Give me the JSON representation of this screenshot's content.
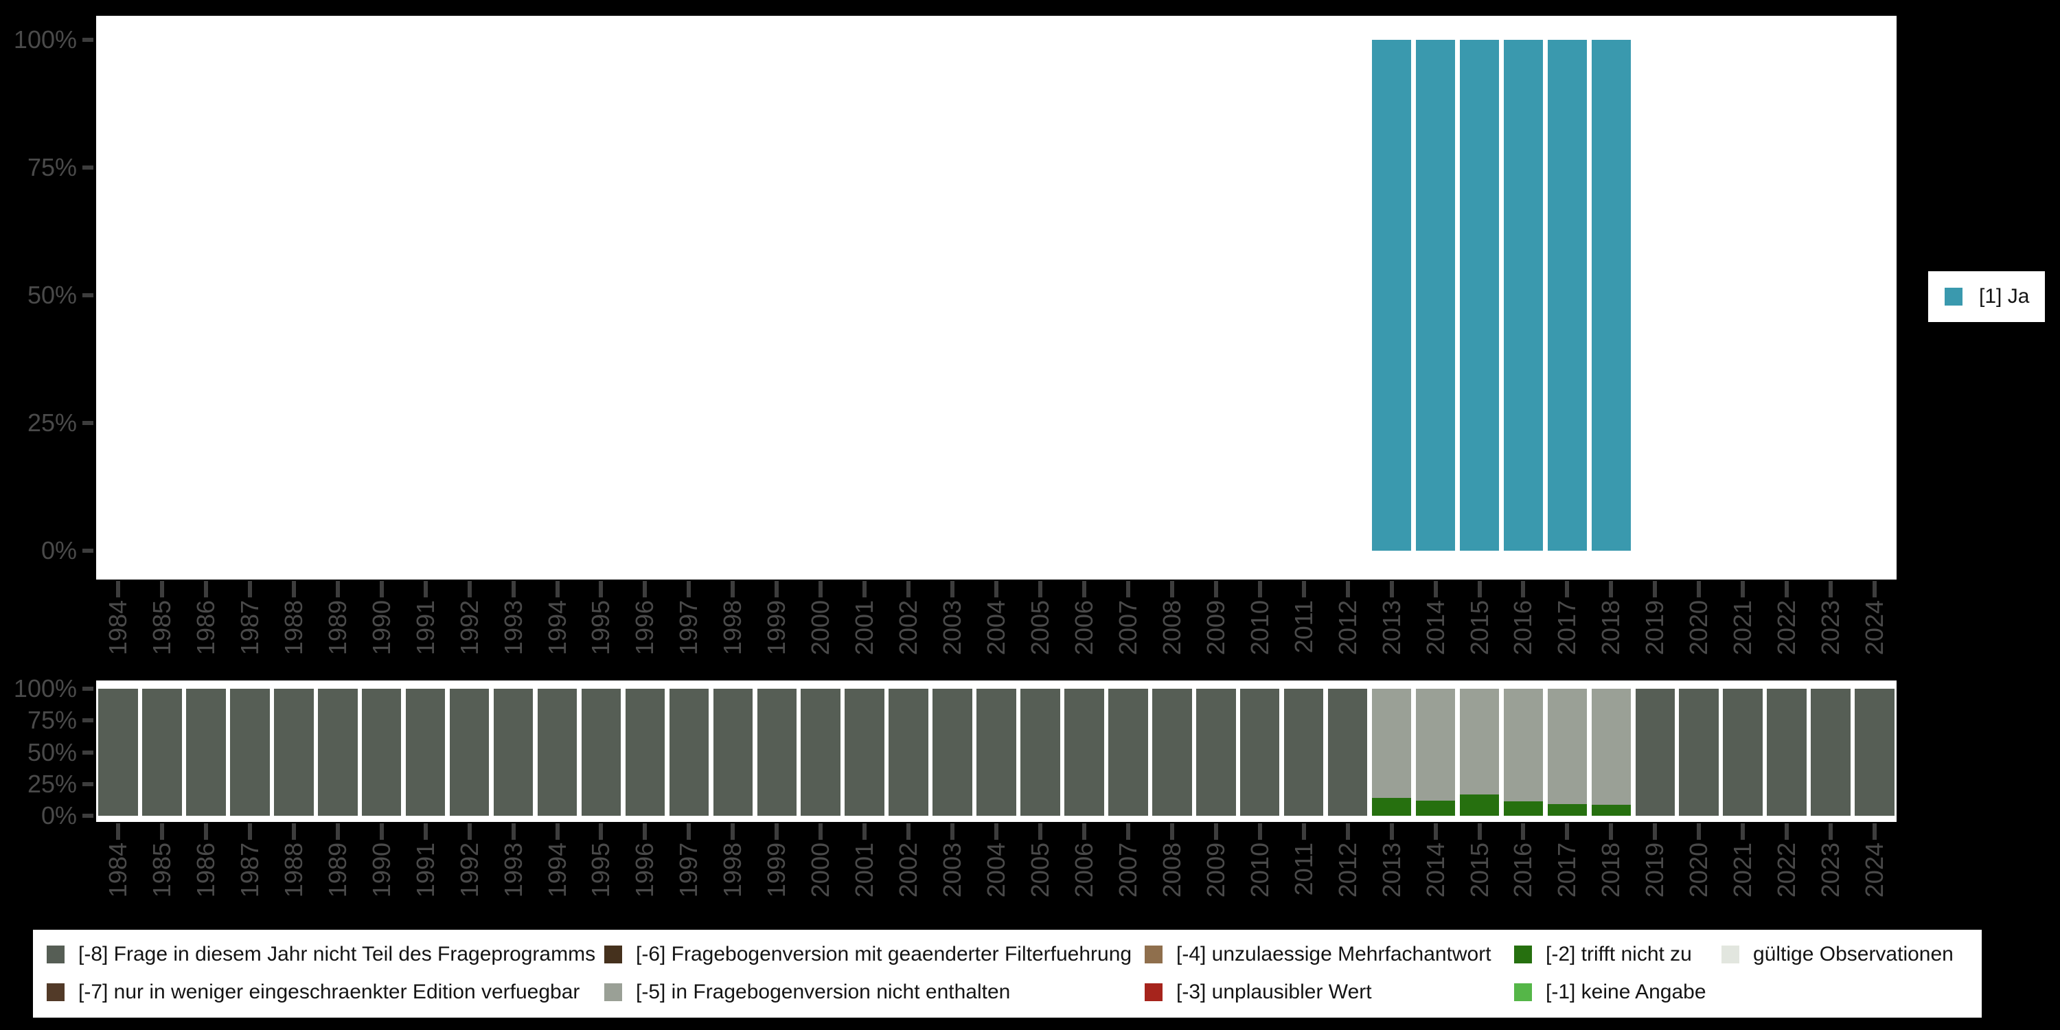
{
  "axis": {
    "percent_ticks": [
      "100%",
      "75%",
      "50%",
      "25%",
      "0%"
    ],
    "years": [
      "1984",
      "1985",
      "1986",
      "1987",
      "1988",
      "1989",
      "1990",
      "1991",
      "1992",
      "1993",
      "1994",
      "1995",
      "1996",
      "1997",
      "1998",
      "1999",
      "2000",
      "2001",
      "2002",
      "2003",
      "2004",
      "2005",
      "2006",
      "2007",
      "2008",
      "2009",
      "2010",
      "2011",
      "2012",
      "2013",
      "2014",
      "2015",
      "2016",
      "2017",
      "2018",
      "2019",
      "2020",
      "2021",
      "2022",
      "2023",
      "2024"
    ]
  },
  "legend_ja": {
    "label": "[1] Ja",
    "color": "#3a99ae"
  },
  "missing_legend": {
    "items": [
      {
        "label": "[-8] Frage in diesem Jahr nicht Teil des Frageprogramms",
        "color": "#565e55"
      },
      {
        "label": "[-7] nur in weniger eingeschraenkter Edition verfuegbar",
        "color": "#523a28"
      },
      {
        "label": "[-6] Fragebogenversion mit geaenderter Filterfuehrung",
        "color": "#45311d"
      },
      {
        "label": "[-5] in Fragebogenversion nicht enthalten",
        "color": "#9aa096"
      },
      {
        "label": "[-4] unzulaessige Mehrfachantwort",
        "color": "#8f6f4d"
      },
      {
        "label": "[-3] unplausibler Wert",
        "color": "#a6241c"
      },
      {
        "label": "[-2] trifft nicht zu",
        "color": "#26700f"
      },
      {
        "label": "[-1] keine Angabe",
        "color": "#55b648"
      },
      {
        "label": "gültige Observationen",
        "color": "#e2e6df"
      }
    ]
  },
  "chart_data": [
    {
      "type": "bar",
      "title": "",
      "x": [
        "1984",
        "1985",
        "1986",
        "1987",
        "1988",
        "1989",
        "1990",
        "1991",
        "1992",
        "1993",
        "1994",
        "1995",
        "1996",
        "1997",
        "1998",
        "1999",
        "2000",
        "2001",
        "2002",
        "2003",
        "2004",
        "2005",
        "2006",
        "2007",
        "2008",
        "2009",
        "2010",
        "2011",
        "2012",
        "2013",
        "2014",
        "2015",
        "2016",
        "2017",
        "2018",
        "2019",
        "2020",
        "2021",
        "2022",
        "2023",
        "2024"
      ],
      "ylabel": "",
      "xlabel": "",
      "ylim": [
        0,
        100
      ],
      "y_tick_labels": [
        "0%",
        "25%",
        "50%",
        "75%",
        "100%"
      ],
      "grid": false,
      "legend_position": "right",
      "series": [
        {
          "name": "[1] Ja",
          "color": "#3a99ae",
          "values": [
            null,
            null,
            null,
            null,
            null,
            null,
            null,
            null,
            null,
            null,
            null,
            null,
            null,
            null,
            null,
            null,
            null,
            null,
            null,
            null,
            null,
            null,
            null,
            null,
            null,
            null,
            null,
            null,
            null,
            100,
            100,
            100,
            100,
            100,
            100,
            null,
            null,
            null,
            null,
            null,
            null
          ]
        }
      ]
    },
    {
      "type": "stacked_bar_percent",
      "title": "",
      "x": [
        "1984",
        "1985",
        "1986",
        "1987",
        "1988",
        "1989",
        "1990",
        "1991",
        "1992",
        "1993",
        "1994",
        "1995",
        "1996",
        "1997",
        "1998",
        "1999",
        "2000",
        "2001",
        "2002",
        "2003",
        "2004",
        "2005",
        "2006",
        "2007",
        "2008",
        "2009",
        "2010",
        "2011",
        "2012",
        "2013",
        "2014",
        "2015",
        "2016",
        "2017",
        "2018",
        "2019",
        "2020",
        "2021",
        "2022",
        "2023",
        "2024"
      ],
      "ylabel": "",
      "xlabel": "",
      "ylim": [
        0,
        100
      ],
      "y_tick_labels": [
        "0%",
        "25%",
        "50%",
        "75%",
        "100%"
      ],
      "grid": false,
      "legend_position": "bottom",
      "series": [
        {
          "name": "[-8] Frage in diesem Jahr nicht Teil des Frageprogramms",
          "color": "#565e55",
          "values": [
            100,
            100,
            100,
            100,
            100,
            100,
            100,
            100,
            100,
            100,
            100,
            100,
            100,
            100,
            100,
            100,
            100,
            100,
            100,
            100,
            100,
            100,
            100,
            100,
            100,
            100,
            100,
            100,
            100,
            0,
            0,
            0,
            0,
            0,
            0,
            100,
            100,
            100,
            100,
            100,
            100
          ]
        },
        {
          "name": "[-5] in Fragebogenversion nicht enthalten",
          "color": "#9aa096",
          "values": [
            0,
            0,
            0,
            0,
            0,
            0,
            0,
            0,
            0,
            0,
            0,
            0,
            0,
            0,
            0,
            0,
            0,
            0,
            0,
            0,
            0,
            0,
            0,
            0,
            0,
            0,
            0,
            0,
            0,
            86,
            88,
            83,
            88.5,
            91,
            91.5,
            0,
            0,
            0,
            0,
            0,
            0
          ]
        },
        {
          "name": "[-2] trifft nicht zu",
          "color": "#26700f",
          "values": [
            0,
            0,
            0,
            0,
            0,
            0,
            0,
            0,
            0,
            0,
            0,
            0,
            0,
            0,
            0,
            0,
            0,
            0,
            0,
            0,
            0,
            0,
            0,
            0,
            0,
            0,
            0,
            0,
            0,
            14,
            12,
            17,
            11.5,
            9,
            8.5,
            0,
            0,
            0,
            0,
            0,
            0
          ]
        }
      ]
    }
  ]
}
